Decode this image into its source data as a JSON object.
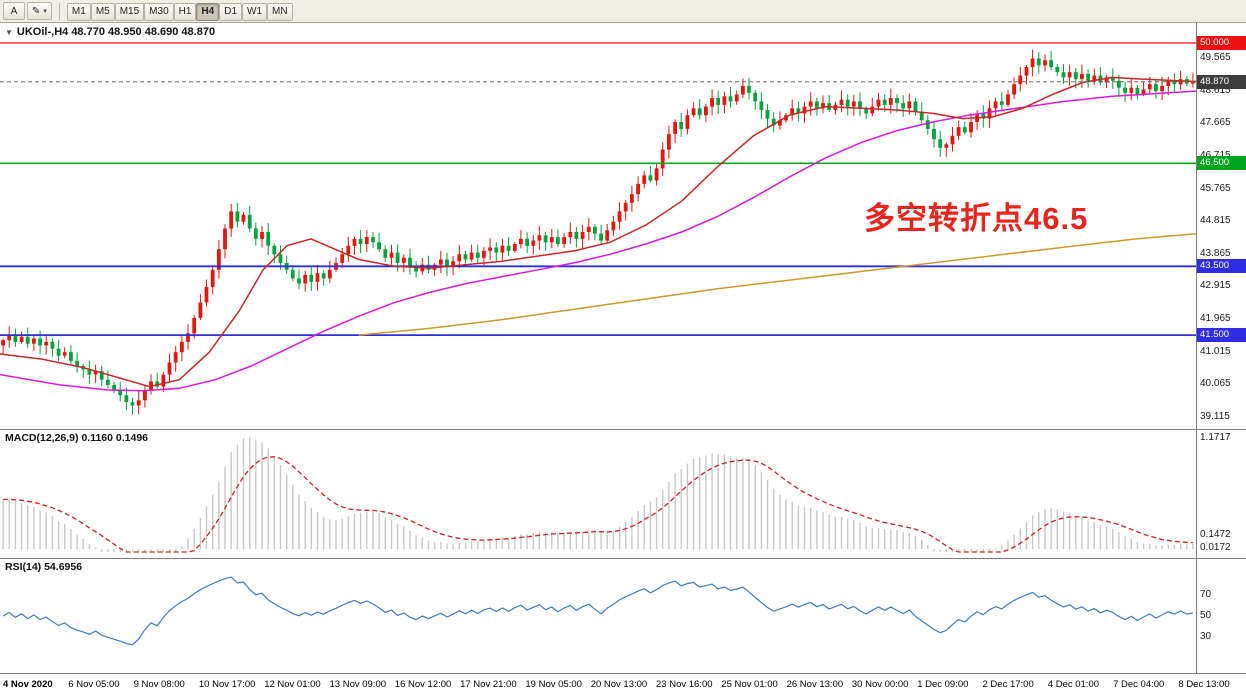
{
  "toolbar": {
    "pointer_label": "A",
    "draw_tool_icon": "✎",
    "timeframes": [
      "M1",
      "M5",
      "M15",
      "M30",
      "H1",
      "H4",
      "D1",
      "W1",
      "MN"
    ],
    "active_timeframe": "H4"
  },
  "main_chart": {
    "title_line": "UKOil-,H4 48.770 48.950 48.690 48.870",
    "annotation_text": "多空转折点46.5",
    "annotation_color": "#e8251c"
  },
  "chart_data": [
    {
      "type": "candlestick",
      "symbol": "UKOil-",
      "timeframe": "H4",
      "ohlc_current": {
        "open": 48.77,
        "high": 48.95,
        "low": 48.69,
        "close": 48.87
      },
      "up_color": "#e3170d",
      "down_color": "#00a33c",
      "price_max": 50.582,
      "price_min": 38.766,
      "closes": [
        41.35,
        41.5,
        41.3,
        41.45,
        41.25,
        41.4,
        41.2,
        41.3,
        41.1,
        40.9,
        41.0,
        40.75,
        40.6,
        40.5,
        40.35,
        40.45,
        40.2,
        40.05,
        39.9,
        39.75,
        39.55,
        39.45,
        39.6,
        39.9,
        40.15,
        40.0,
        40.35,
        40.7,
        41.0,
        41.3,
        41.55,
        42.0,
        42.45,
        42.9,
        43.4,
        44.0,
        44.6,
        45.1,
        44.8,
        45.0,
        44.6,
        44.3,
        44.5,
        44.1,
        43.85,
        43.6,
        43.4,
        43.15,
        43.0,
        43.25,
        43.05,
        43.3,
        43.15,
        43.4,
        43.6,
        43.85,
        44.1,
        44.3,
        44.15,
        44.35,
        44.2,
        44.0,
        43.75,
        43.9,
        43.6,
        43.75,
        43.5,
        43.35,
        43.55,
        43.4,
        43.55,
        43.7,
        43.5,
        43.65,
        43.85,
        43.7,
        43.9,
        43.75,
        43.95,
        44.05,
        43.9,
        44.1,
        43.95,
        44.15,
        44.3,
        44.1,
        44.25,
        44.4,
        44.2,
        44.35,
        44.15,
        44.35,
        44.5,
        44.3,
        44.5,
        44.65,
        44.45,
        44.25,
        44.55,
        44.8,
        45.1,
        45.35,
        45.6,
        45.9,
        46.15,
        46.0,
        46.35,
        46.9,
        47.35,
        47.7,
        47.5,
        47.9,
        48.1,
        47.9,
        48.15,
        48.4,
        48.2,
        48.45,
        48.3,
        48.5,
        48.75,
        48.55,
        48.3,
        48.05,
        47.8,
        47.6,
        47.75,
        47.9,
        48.1,
        47.95,
        48.15,
        48.3,
        48.1,
        48.25,
        48.05,
        48.2,
        48.35,
        48.15,
        48.3,
        48.1,
        47.95,
        48.15,
        48.35,
        48.2,
        48.4,
        48.25,
        48.1,
        48.3,
        48.0,
        47.75,
        47.5,
        47.2,
        46.95,
        47.05,
        47.3,
        47.55,
        47.4,
        47.7,
        47.95,
        47.8,
        48.1,
        48.3,
        48.2,
        48.5,
        48.8,
        49.05,
        49.3,
        49.55,
        49.35,
        49.5,
        49.3,
        49.15,
        49.0,
        49.15,
        48.95,
        49.1,
        48.9,
        49.05,
        48.85,
        49.0,
        48.9,
        48.7,
        48.55,
        48.7,
        48.5,
        48.65,
        48.8,
        48.6,
        48.75,
        48.9,
        48.8,
        48.95,
        48.82,
        48.87
      ],
      "y_axis_labels": [
        "49.565",
        "48.615",
        "47.665",
        "46.715",
        "45.765",
        "44.815",
        "43.865",
        "42.915",
        "41.965",
        "41.015",
        "40.065",
        "39.115"
      ],
      "hlines": [
        {
          "price": 50.0,
          "label": "50.000",
          "color": "#ee1111",
          "width": 1.3
        },
        {
          "price": 46.5,
          "label": "46.500",
          "color": "#00a51e",
          "width": 1.6
        },
        {
          "price": 43.5,
          "label": "43.500",
          "color": "#2e2ee0",
          "width": 1.8
        },
        {
          "price": 41.5,
          "label": "41.500",
          "color": "#2e2ee0",
          "width": 1.8
        }
      ],
      "current_price": {
        "value": 48.87,
        "label": "48.870",
        "badge_color": "#3c3c3c",
        "line_color": "#6b6b6b"
      },
      "ma_colors": {
        "red": "#c62828",
        "magenta": "#d81bd8",
        "orange": "#cf9a2c"
      },
      "moving_averages": {
        "red": [
          [
            0,
            40.95
          ],
          [
            0.035,
            40.8
          ],
          [
            0.07,
            40.55
          ],
          [
            0.1,
            40.25
          ],
          [
            0.125,
            40.0
          ],
          [
            0.15,
            40.2
          ],
          [
            0.175,
            41.0
          ],
          [
            0.2,
            42.2
          ],
          [
            0.22,
            43.4
          ],
          [
            0.24,
            44.1
          ],
          [
            0.26,
            44.3
          ],
          [
            0.28,
            44.0
          ],
          [
            0.3,
            43.7
          ],
          [
            0.33,
            43.5
          ],
          [
            0.36,
            43.45
          ],
          [
            0.39,
            43.55
          ],
          [
            0.42,
            43.65
          ],
          [
            0.45,
            43.8
          ],
          [
            0.48,
            43.95
          ],
          [
            0.51,
            44.2
          ],
          [
            0.54,
            44.7
          ],
          [
            0.57,
            45.4
          ],
          [
            0.6,
            46.4
          ],
          [
            0.63,
            47.3
          ],
          [
            0.66,
            47.9
          ],
          [
            0.69,
            48.15
          ],
          [
            0.72,
            48.1
          ],
          [
            0.75,
            48.05
          ],
          [
            0.78,
            47.95
          ],
          [
            0.805,
            47.8
          ],
          [
            0.83,
            47.85
          ],
          [
            0.855,
            48.1
          ],
          [
            0.88,
            48.5
          ],
          [
            0.905,
            48.85
          ],
          [
            0.93,
            49.0
          ],
          [
            0.955,
            48.95
          ],
          [
            1,
            48.88
          ]
        ],
        "magenta": [
          [
            0,
            40.35
          ],
          [
            0.05,
            40.05
          ],
          [
            0.09,
            39.9
          ],
          [
            0.12,
            39.88
          ],
          [
            0.15,
            39.95
          ],
          [
            0.18,
            40.2
          ],
          [
            0.21,
            40.6
          ],
          [
            0.24,
            41.1
          ],
          [
            0.27,
            41.6
          ],
          [
            0.3,
            42.05
          ],
          [
            0.33,
            42.45
          ],
          [
            0.36,
            42.75
          ],
          [
            0.39,
            43.0
          ],
          [
            0.42,
            43.2
          ],
          [
            0.45,
            43.4
          ],
          [
            0.48,
            43.6
          ],
          [
            0.51,
            43.85
          ],
          [
            0.54,
            44.15
          ],
          [
            0.57,
            44.5
          ],
          [
            0.6,
            44.95
          ],
          [
            0.63,
            45.5
          ],
          [
            0.66,
            46.1
          ],
          [
            0.69,
            46.65
          ],
          [
            0.72,
            47.1
          ],
          [
            0.75,
            47.45
          ],
          [
            0.78,
            47.7
          ],
          [
            0.81,
            47.9
          ],
          [
            0.85,
            48.1
          ],
          [
            0.89,
            48.3
          ],
          [
            0.93,
            48.45
          ],
          [
            1,
            48.6
          ]
        ],
        "orange": [
          [
            0.3,
            41.5
          ],
          [
            0.36,
            41.7
          ],
          [
            0.42,
            41.95
          ],
          [
            0.48,
            42.25
          ],
          [
            0.54,
            42.55
          ],
          [
            0.6,
            42.85
          ],
          [
            0.66,
            43.1
          ],
          [
            0.72,
            43.35
          ],
          [
            0.78,
            43.6
          ],
          [
            0.84,
            43.85
          ],
          [
            0.9,
            44.1
          ],
          [
            0.95,
            44.3
          ],
          [
            1,
            44.45
          ]
        ]
      },
      "x_labels": [
        "4 Nov 2020",
        "6 Nov 05:00",
        "9 Nov 08:00",
        "10 Nov 17:00",
        "12 Nov 01:00",
        "13 Nov 09:00",
        "16 Nov 12:00",
        "17 Nov 21:00",
        "19 Nov 05:00",
        "20 Nov 13:00",
        "23 Nov 16:00",
        "25 Nov 01:00",
        "26 Nov 13:00",
        "30 Nov 00:00",
        "1 Dec 09:00",
        "2 Dec 17:00",
        "4 Dec 01:00",
        "7 Dec 04:00",
        "8 Dec 13:00"
      ]
    },
    {
      "type": "macd",
      "label": "MACD(12,26,9) 0.1160 0.1496",
      "fast": 12,
      "slow": 26,
      "signal_period": 9,
      "current_macd": 0.116,
      "current_signal": 0.1496,
      "axis_labels": [
        "1.1717",
        "0.1472",
        "0.0172"
      ],
      "scale_min": -0.03,
      "scale_max": 1.22,
      "seed_ema12": 40.95,
      "seed_ema26": 40.42,
      "histogram_color": "#c8c8c8",
      "signal_color": "#cc2222"
    },
    {
      "type": "rsi",
      "label": "RSI(14) 54.6956",
      "period": 14,
      "current": 54.6956,
      "axis_labels": [
        "70",
        "50",
        "30"
      ],
      "scale_min": 0,
      "scale_max": 100,
      "line_color": "#3e7abd"
    }
  ]
}
